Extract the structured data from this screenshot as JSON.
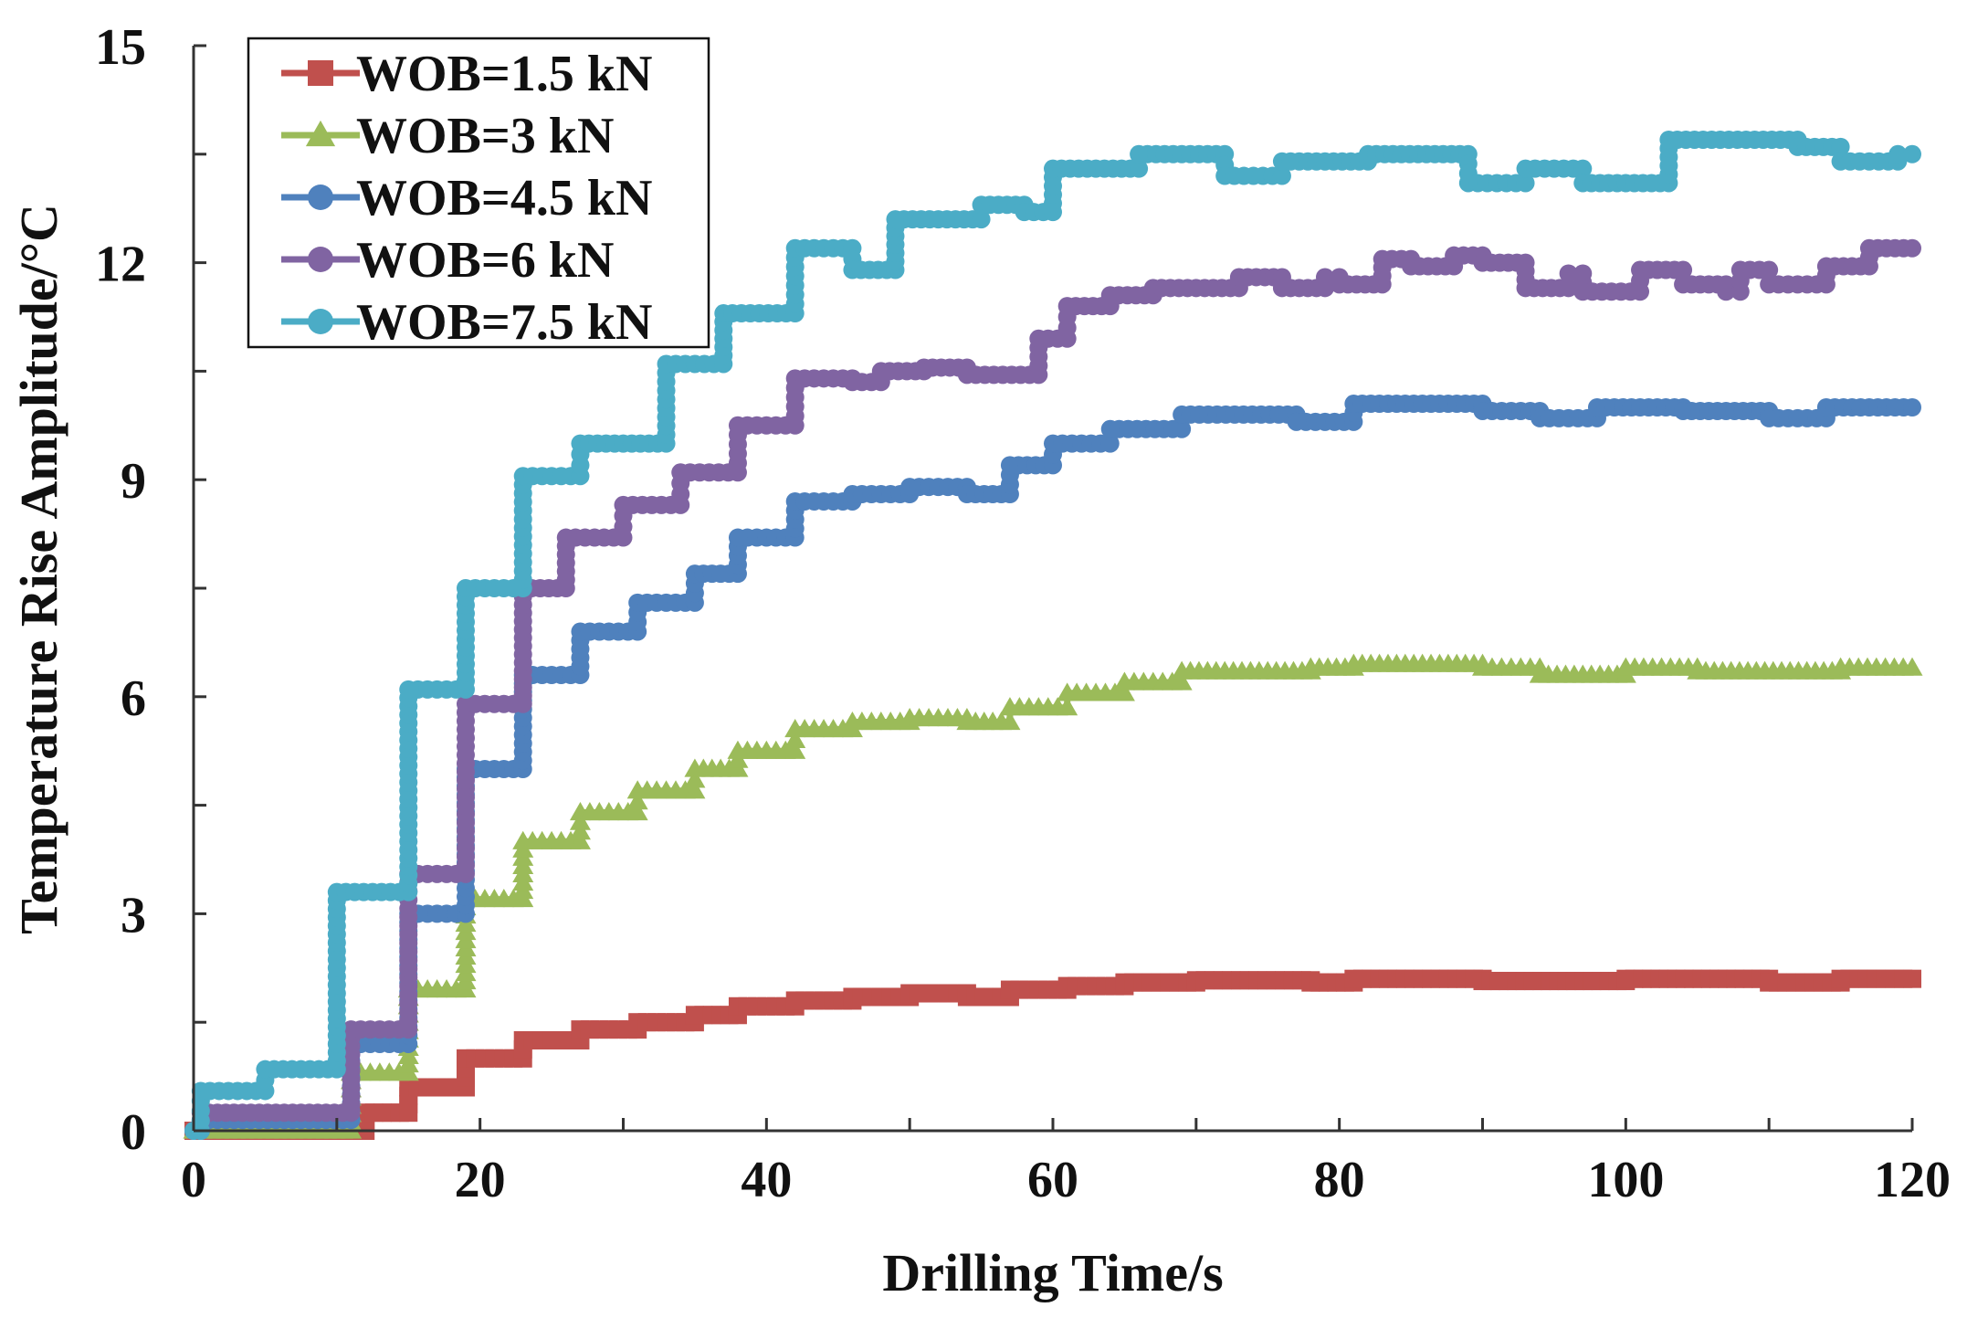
{
  "chart_data": {
    "type": "line",
    "title": "",
    "xlabel": "Drilling Time/s",
    "ylabel": "Temperature Rise Amplitude/°C",
    "xlim": [
      0,
      120
    ],
    "ylim": [
      0,
      15
    ],
    "xticks": [
      0,
      20,
      40,
      60,
      80,
      100,
      120
    ],
    "yticks": [
      0,
      3,
      6,
      9,
      12,
      15
    ],
    "xtick_labels": [
      "0",
      "20",
      "40",
      "60",
      "80",
      "100",
      "120"
    ],
    "ytick_labels": [
      "0",
      "3",
      "6",
      "9",
      "12",
      "15"
    ],
    "grid": false,
    "legend_position": "top-left",
    "series": [
      {
        "name": "WOB=1.5 kN",
        "color": "#c0504d",
        "marker": "square",
        "points": [
          [
            0,
            0
          ],
          [
            12,
            0
          ],
          [
            12,
            0.25
          ],
          [
            15,
            0.25
          ],
          [
            15,
            0.6
          ],
          [
            19,
            0.6
          ],
          [
            19,
            1.0
          ],
          [
            23,
            1.0
          ],
          [
            23,
            1.25
          ],
          [
            27,
            1.25
          ],
          [
            27,
            1.4
          ],
          [
            31,
            1.4
          ],
          [
            31,
            1.5
          ],
          [
            35,
            1.5
          ],
          [
            35,
            1.6
          ],
          [
            38,
            1.6
          ],
          [
            38,
            1.72
          ],
          [
            42,
            1.72
          ],
          [
            42,
            1.8
          ],
          [
            46,
            1.8
          ],
          [
            46,
            1.85
          ],
          [
            50,
            1.85
          ],
          [
            50,
            1.9
          ],
          [
            54,
            1.9
          ],
          [
            54,
            1.85
          ],
          [
            57,
            1.85
          ],
          [
            57,
            1.95
          ],
          [
            61,
            1.95
          ],
          [
            61,
            2.0
          ],
          [
            65,
            2.0
          ],
          [
            65,
            2.05
          ],
          [
            70,
            2.05
          ],
          [
            70,
            2.08
          ],
          [
            78,
            2.08
          ],
          [
            78,
            2.05
          ],
          [
            81,
            2.05
          ],
          [
            81,
            2.1
          ],
          [
            90,
            2.1
          ],
          [
            90,
            2.07
          ],
          [
            100,
            2.07
          ],
          [
            100,
            2.1
          ],
          [
            110,
            2.1
          ],
          [
            110,
            2.05
          ],
          [
            115,
            2.05
          ],
          [
            115,
            2.1
          ],
          [
            120,
            2.1
          ]
        ]
      },
      {
        "name": "WOB=3 kN",
        "color": "#9bbb59",
        "marker": "triangle",
        "points": [
          [
            0,
            0
          ],
          [
            11,
            0
          ],
          [
            11,
            0.8
          ],
          [
            15,
            0.8
          ],
          [
            15,
            1.95
          ],
          [
            19,
            1.95
          ],
          [
            19,
            3.2
          ],
          [
            23,
            3.2
          ],
          [
            23,
            4.0
          ],
          [
            27,
            4.0
          ],
          [
            27,
            4.4
          ],
          [
            31,
            4.4
          ],
          [
            31,
            4.7
          ],
          [
            35,
            4.7
          ],
          [
            35,
            5.0
          ],
          [
            38,
            5.0
          ],
          [
            38,
            5.25
          ],
          [
            42,
            5.25
          ],
          [
            42,
            5.55
          ],
          [
            46,
            5.55
          ],
          [
            46,
            5.65
          ],
          [
            50,
            5.65
          ],
          [
            50,
            5.7
          ],
          [
            54,
            5.7
          ],
          [
            54,
            5.65
          ],
          [
            57,
            5.65
          ],
          [
            57,
            5.85
          ],
          [
            61,
            5.85
          ],
          [
            61,
            6.05
          ],
          [
            65,
            6.05
          ],
          [
            65,
            6.2
          ],
          [
            69,
            6.2
          ],
          [
            69,
            6.35
          ],
          [
            78,
            6.35
          ],
          [
            78,
            6.4
          ],
          [
            81,
            6.4
          ],
          [
            81,
            6.45
          ],
          [
            90,
            6.45
          ],
          [
            90,
            6.4
          ],
          [
            94,
            6.4
          ],
          [
            94,
            6.3
          ],
          [
            100,
            6.3
          ],
          [
            100,
            6.4
          ],
          [
            105,
            6.4
          ],
          [
            105,
            6.35
          ],
          [
            115,
            6.35
          ],
          [
            115,
            6.4
          ],
          [
            120,
            6.4
          ]
        ]
      },
      {
        "name": "WOB=4.5 kN",
        "color": "#4f81bd",
        "marker": "circle",
        "points": [
          [
            0,
            0
          ],
          [
            0.5,
            0
          ],
          [
            0.5,
            0.15
          ],
          [
            11,
            0.15
          ],
          [
            11,
            1.2
          ],
          [
            15,
            1.2
          ],
          [
            15,
            3.0
          ],
          [
            19,
            3.0
          ],
          [
            19,
            5.0
          ],
          [
            23,
            5.0
          ],
          [
            23,
            6.3
          ],
          [
            27,
            6.3
          ],
          [
            27,
            6.9
          ],
          [
            31,
            6.9
          ],
          [
            31,
            7.3
          ],
          [
            35,
            7.3
          ],
          [
            35,
            7.7
          ],
          [
            38,
            7.7
          ],
          [
            38,
            8.2
          ],
          [
            42,
            8.2
          ],
          [
            42,
            8.7
          ],
          [
            46,
            8.7
          ],
          [
            46,
            8.8
          ],
          [
            50,
            8.8
          ],
          [
            50,
            8.9
          ],
          [
            54,
            8.9
          ],
          [
            54,
            8.8
          ],
          [
            57,
            8.8
          ],
          [
            57,
            9.2
          ],
          [
            60,
            9.2
          ],
          [
            60,
            9.5
          ],
          [
            64,
            9.5
          ],
          [
            64,
            9.7
          ],
          [
            69,
            9.7
          ],
          [
            69,
            9.9
          ],
          [
            77,
            9.9
          ],
          [
            77,
            9.8
          ],
          [
            81,
            9.8
          ],
          [
            81,
            10.05
          ],
          [
            90,
            10.05
          ],
          [
            90,
            9.95
          ],
          [
            94,
            9.95
          ],
          [
            94,
            9.85
          ],
          [
            98,
            9.85
          ],
          [
            98,
            10.0
          ],
          [
            104,
            10.0
          ],
          [
            104,
            9.95
          ],
          [
            110,
            9.95
          ],
          [
            110,
            9.85
          ],
          [
            114,
            9.85
          ],
          [
            114,
            10.0
          ],
          [
            120,
            10.0
          ]
        ]
      },
      {
        "name": "WOB=6 kN",
        "color": "#8064a2",
        "marker": "circle",
        "points": [
          [
            0,
            0
          ],
          [
            0.5,
            0
          ],
          [
            0.5,
            0.25
          ],
          [
            11,
            0.25
          ],
          [
            11,
            1.4
          ],
          [
            15,
            1.4
          ],
          [
            15,
            3.55
          ],
          [
            19,
            3.55
          ],
          [
            19,
            5.9
          ],
          [
            23,
            5.9
          ],
          [
            23,
            7.5
          ],
          [
            26,
            7.5
          ],
          [
            26,
            8.2
          ],
          [
            30,
            8.2
          ],
          [
            30,
            8.65
          ],
          [
            34,
            8.65
          ],
          [
            34,
            9.1
          ],
          [
            38,
            9.1
          ],
          [
            38,
            9.75
          ],
          [
            42,
            9.75
          ],
          [
            42,
            10.4
          ],
          [
            46,
            10.4
          ],
          [
            46,
            10.35
          ],
          [
            48,
            10.35
          ],
          [
            48,
            10.5
          ],
          [
            51,
            10.5
          ],
          [
            51,
            10.55
          ],
          [
            54,
            10.55
          ],
          [
            54,
            10.45
          ],
          [
            59,
            10.45
          ],
          [
            59,
            10.95
          ],
          [
            61,
            10.95
          ],
          [
            61,
            11.4
          ],
          [
            64,
            11.4
          ],
          [
            64,
            11.55
          ],
          [
            67,
            11.55
          ],
          [
            67,
            11.65
          ],
          [
            73,
            11.65
          ],
          [
            73,
            11.8
          ],
          [
            76,
            11.8
          ],
          [
            76,
            11.65
          ],
          [
            79,
            11.65
          ],
          [
            79,
            11.8
          ],
          [
            80,
            11.8
          ],
          [
            80,
            11.7
          ],
          [
            83,
            11.7
          ],
          [
            83,
            12.05
          ],
          [
            85,
            12.05
          ],
          [
            85,
            11.95
          ],
          [
            88,
            11.95
          ],
          [
            88,
            12.1
          ],
          [
            90,
            12.1
          ],
          [
            90,
            12.0
          ],
          [
            93,
            12.0
          ],
          [
            93,
            11.65
          ],
          [
            96,
            11.65
          ],
          [
            96,
            11.85
          ],
          [
            97,
            11.85
          ],
          [
            97,
            11.6
          ],
          [
            101,
            11.6
          ],
          [
            101,
            11.9
          ],
          [
            104,
            11.9
          ],
          [
            104,
            11.7
          ],
          [
            107,
            11.7
          ],
          [
            107,
            11.6
          ],
          [
            108,
            11.6
          ],
          [
            108,
            11.9
          ],
          [
            110,
            11.9
          ],
          [
            110,
            11.7
          ],
          [
            114,
            11.7
          ],
          [
            114,
            11.95
          ],
          [
            117,
            11.95
          ],
          [
            117,
            12.2
          ],
          [
            120,
            12.2
          ]
        ]
      },
      {
        "name": "WOB=7.5 kN",
        "color": "#4bacc6",
        "marker": "circle",
        "points": [
          [
            0,
            0
          ],
          [
            0.5,
            0
          ],
          [
            0.5,
            0.55
          ],
          [
            5,
            0.55
          ],
          [
            5,
            0.85
          ],
          [
            10,
            0.85
          ],
          [
            10,
            3.3
          ],
          [
            15,
            3.3
          ],
          [
            15,
            6.1
          ],
          [
            19,
            6.1
          ],
          [
            19,
            7.5
          ],
          [
            23,
            7.5
          ],
          [
            23,
            9.05
          ],
          [
            27,
            9.05
          ],
          [
            27,
            9.5
          ],
          [
            33,
            9.5
          ],
          [
            33,
            10.6
          ],
          [
            37,
            10.6
          ],
          [
            37,
            11.3
          ],
          [
            42,
            11.3
          ],
          [
            42,
            12.2
          ],
          [
            46,
            12.2
          ],
          [
            46,
            11.9
          ],
          [
            49,
            11.9
          ],
          [
            49,
            12.6
          ],
          [
            55,
            12.6
          ],
          [
            55,
            12.8
          ],
          [
            58,
            12.8
          ],
          [
            58,
            12.7
          ],
          [
            60,
            12.7
          ],
          [
            60,
            13.3
          ],
          [
            66,
            13.3
          ],
          [
            66,
            13.5
          ],
          [
            72,
            13.5
          ],
          [
            72,
            13.2
          ],
          [
            76,
            13.2
          ],
          [
            76,
            13.4
          ],
          [
            82,
            13.4
          ],
          [
            82,
            13.5
          ],
          [
            89,
            13.5
          ],
          [
            89,
            13.1
          ],
          [
            93,
            13.1
          ],
          [
            93,
            13.3
          ],
          [
            97,
            13.3
          ],
          [
            97,
            13.1
          ],
          [
            103,
            13.1
          ],
          [
            103,
            13.7
          ],
          [
            112,
            13.7
          ],
          [
            112,
            13.6
          ],
          [
            115,
            13.6
          ],
          [
            115,
            13.4
          ],
          [
            119,
            13.4
          ],
          [
            119,
            13.5
          ],
          [
            120,
            13.5
          ]
        ]
      }
    ]
  }
}
